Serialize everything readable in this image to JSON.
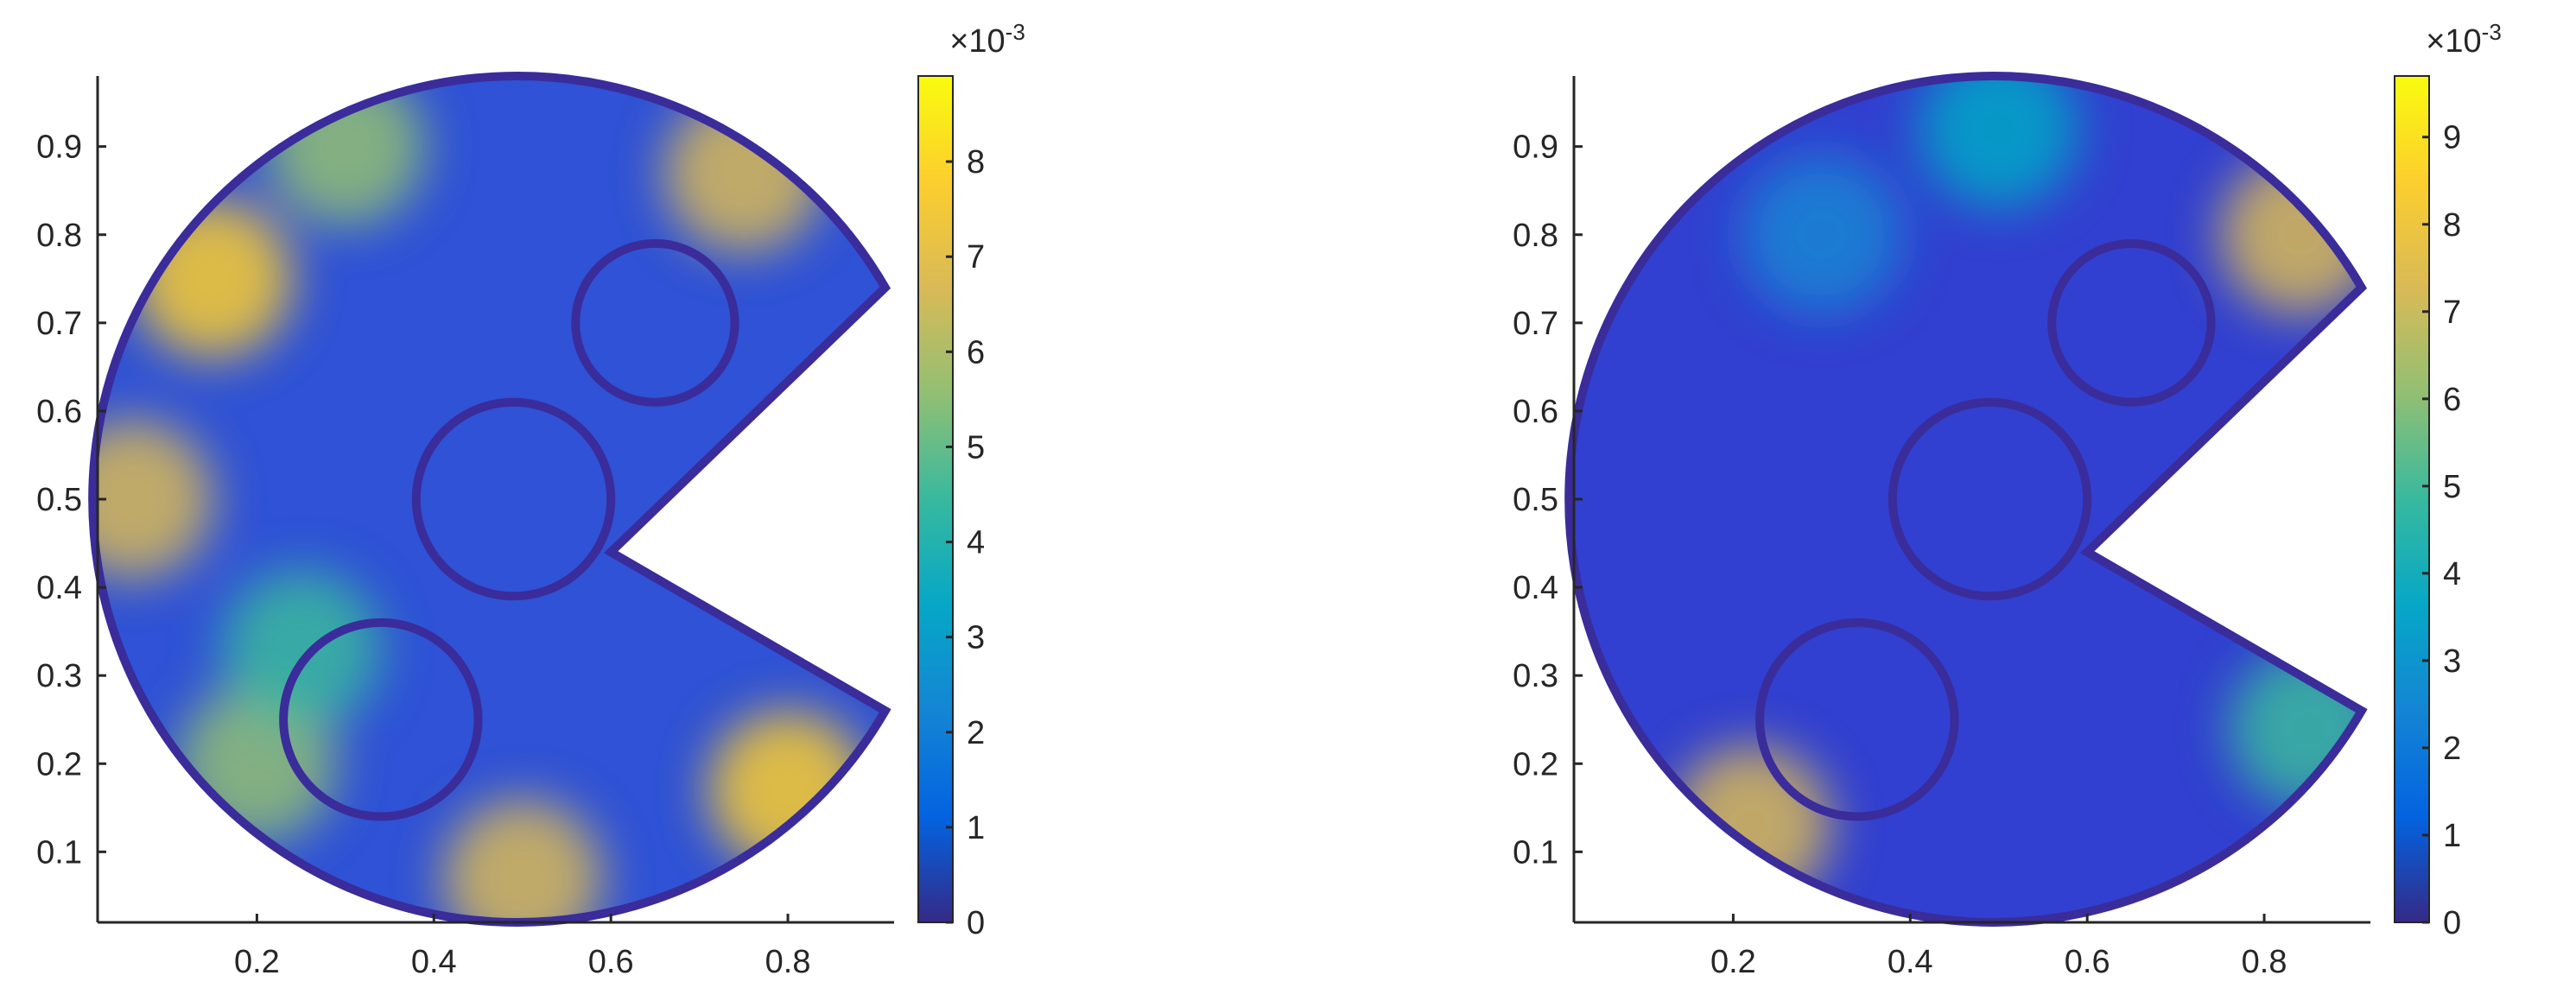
{
  "chart_data": [
    {
      "type": "heatmap",
      "title": "",
      "xlabel": "",
      "ylabel": "",
      "xlim": [
        0.02,
        0.92
      ],
      "ylim": [
        0.02,
        0.98
      ],
      "xticks": [
        0.2,
        0.4,
        0.6,
        0.8
      ],
      "yticks": [
        0.1,
        0.2,
        0.3,
        0.4,
        0.5,
        0.6,
        0.7,
        0.8,
        0.9
      ],
      "grid": false,
      "colormap": "parula",
      "colorbar": {
        "min": 0,
        "max": 0.0089,
        "ticks": [
          0,
          1,
          2,
          3,
          4,
          5,
          6,
          7,
          8
        ],
        "exponent_label": "×10",
        "exponent": "-3"
      },
      "domain": {
        "outer_circle": {
          "cx": 0.5,
          "cy": 0.5,
          "r": 0.48
        },
        "notch_tips": [
          [
            0.91,
            0.74
          ],
          [
            0.91,
            0.26
          ],
          [
            0.6,
            0.44
          ]
        ],
        "holes": [
          {
            "cx": 0.34,
            "cy": 0.25,
            "r": 0.11
          },
          {
            "cx": 0.49,
            "cy": 0.5,
            "r": 0.11
          },
          {
            "cx": 0.65,
            "cy": 0.7,
            "r": 0.09
          }
        ]
      },
      "hot_spots": [
        {
          "x": 0.15,
          "y": 0.75,
          "level": 0.85
        },
        {
          "x": 0.06,
          "y": 0.5,
          "level": 0.7
        },
        {
          "x": 0.8,
          "y": 0.17,
          "level": 0.85
        },
        {
          "x": 0.75,
          "y": 0.87,
          "level": 0.75
        },
        {
          "x": 0.3,
          "y": 0.9,
          "level": 0.65
        },
        {
          "x": 0.2,
          "y": 0.2,
          "level": 0.6
        },
        {
          "x": 0.25,
          "y": 0.33,
          "level": 0.55
        },
        {
          "x": 0.5,
          "y": 0.07,
          "level": 0.7
        }
      ]
    },
    {
      "type": "heatmap",
      "title": "",
      "xlabel": "",
      "ylabel": "",
      "xlim": [
        0.02,
        0.92
      ],
      "ylim": [
        0.02,
        0.98
      ],
      "xticks": [
        0.2,
        0.4,
        0.6,
        0.8
      ],
      "yticks": [
        0.1,
        0.2,
        0.3,
        0.4,
        0.5,
        0.6,
        0.7,
        0.8,
        0.9
      ],
      "grid": false,
      "colormap": "parula",
      "colorbar": {
        "min": 0,
        "max": 0.0097,
        "ticks": [
          0,
          1,
          2,
          3,
          4,
          5,
          6,
          7,
          8,
          9
        ],
        "exponent_label": "×10",
        "exponent": "-3"
      },
      "domain": {
        "outer_circle": {
          "cx": 0.5,
          "cy": 0.5,
          "r": 0.48
        },
        "notch_tips": [
          [
            0.91,
            0.74
          ],
          [
            0.91,
            0.26
          ],
          [
            0.6,
            0.44
          ]
        ],
        "holes": [
          {
            "cx": 0.34,
            "cy": 0.25,
            "r": 0.11
          },
          {
            "cx": 0.49,
            "cy": 0.5,
            "r": 0.11
          },
          {
            "cx": 0.65,
            "cy": 0.7,
            "r": 0.09
          }
        ]
      },
      "hot_spots": [
        {
          "x": 0.84,
          "y": 0.8,
          "level": 0.75
        },
        {
          "x": 0.22,
          "y": 0.13,
          "level": 0.8
        },
        {
          "x": 0.85,
          "y": 0.24,
          "level": 0.55
        },
        {
          "x": 0.5,
          "y": 0.92,
          "level": 0.4
        },
        {
          "x": 0.3,
          "y": 0.8,
          "level": 0.3
        }
      ]
    }
  ]
}
